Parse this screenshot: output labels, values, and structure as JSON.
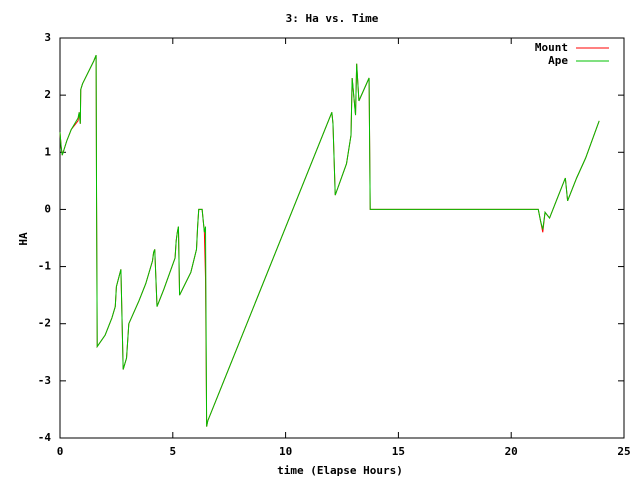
{
  "chart_data": {
    "type": "line",
    "title": "3: Ha vs. Time",
    "x_label": "time (Elapse Hours)",
    "y_label": "HA",
    "x": [
      0,
      0.05,
      0.1,
      0.3,
      0.5,
      0.8,
      0.85,
      0.9,
      0.92,
      1.0,
      1.5,
      1.6,
      1.62,
      1.65,
      2.0,
      2.2,
      2.3,
      2.45,
      2.5,
      2.7,
      2.8,
      2.95,
      3.0,
      3.05,
      3.5,
      3.8,
      4.1,
      4.15,
      4.2,
      4.25,
      4.3,
      4.6,
      5.1,
      5.15,
      5.2,
      5.25,
      5.3,
      5.8,
      6.05,
      6.1,
      6.15,
      6.3,
      6.4,
      6.45,
      6.5,
      6.55,
      12.05,
      12.1,
      12.2,
      12.7,
      12.9,
      12.95,
      13.1,
      13.15,
      13.25,
      13.7,
      13.75,
      21.2,
      21.3,
      21.4,
      21.5,
      21.7,
      22.0,
      22.4,
      22.5,
      22.9,
      23.3,
      23.9
    ],
    "series": [
      {
        "name": "Mount",
        "color": "#ff0000",
        "values": [
          1.35,
          1.1,
          0.95,
          1.2,
          1.4,
          1.55,
          1.7,
          1.5,
          2.1,
          2.2,
          2.6,
          2.7,
          0.2,
          -2.4,
          -2.2,
          -2.0,
          -1.9,
          -1.7,
          -1.35,
          -1.05,
          -2.8,
          -2.6,
          -2.3,
          -2.0,
          -1.6,
          -1.3,
          -0.9,
          -0.75,
          -0.7,
          -1.2,
          -1.7,
          -1.4,
          -0.85,
          -0.55,
          -0.4,
          -0.3,
          -1.5,
          -1.1,
          -0.7,
          -0.3,
          0,
          0,
          -0.4,
          -1.2,
          -3.8,
          -3.7,
          1.7,
          1.5,
          0.25,
          0.8,
          1.3,
          2.3,
          1.65,
          2.55,
          1.9,
          2.3,
          0,
          0,
          -0.2,
          -0.4,
          -0.05,
          -0.15,
          0.15,
          0.55,
          0.15,
          0.55,
          0.9,
          1.55
        ]
      },
      {
        "name": "Ape",
        "color": "#00c000",
        "values": [
          1.35,
          1.1,
          0.95,
          1.2,
          1.4,
          1.6,
          1.7,
          1.5,
          2.1,
          2.2,
          2.6,
          2.7,
          0.2,
          -2.4,
          -2.2,
          -2.0,
          -1.9,
          -1.7,
          -1.35,
          -1.05,
          -2.8,
          -2.6,
          -2.3,
          -2.0,
          -1.6,
          -1.3,
          -0.9,
          -0.75,
          -0.7,
          -1.2,
          -1.7,
          -1.4,
          -0.85,
          -0.55,
          -0.4,
          -0.3,
          -1.5,
          -1.1,
          -0.7,
          -0.3,
          0,
          0,
          -0.4,
          -0.3,
          -3.8,
          -3.7,
          1.7,
          1.5,
          0.25,
          0.8,
          1.3,
          2.3,
          1.65,
          2.55,
          1.9,
          2.3,
          0,
          0,
          -0.2,
          -0.35,
          -0.05,
          -0.15,
          0.15,
          0.55,
          0.15,
          0.55,
          0.9,
          1.55
        ]
      }
    ],
    "xlim": [
      0,
      25
    ],
    "xticks": [
      0,
      5,
      10,
      15,
      20,
      25
    ],
    "ylim": [
      -4,
      3
    ],
    "yticks": [
      -4,
      -3,
      -2,
      -1,
      0,
      1,
      2,
      3
    ],
    "legend": "top-right"
  }
}
